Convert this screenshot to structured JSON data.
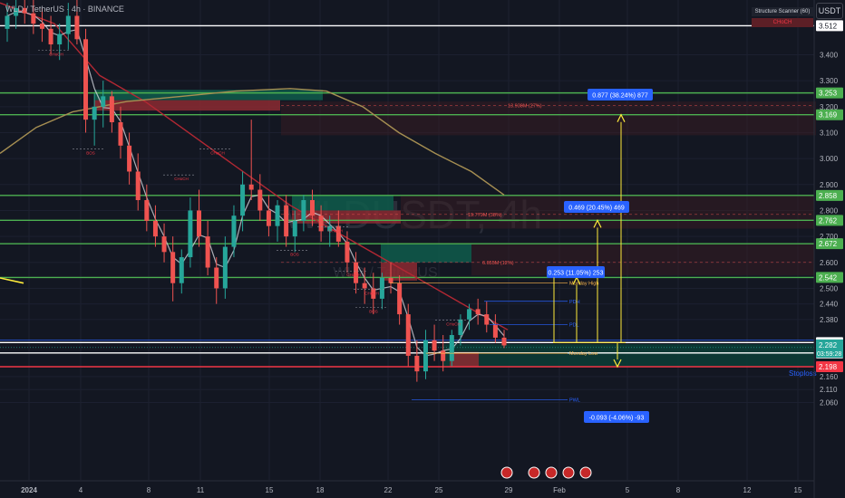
{
  "header": {
    "symbol_title": "WLD / TetherUS · 4h · BINANCE",
    "currency_button": "USDT",
    "scanner_title": "Structure Scanner (60)",
    "scanner_value": "CHoCH"
  },
  "colors": {
    "background": "#131722",
    "up": "#26a69a",
    "down": "#ef5350",
    "level_green": "#4caf50",
    "stoploss_red": "#f23645",
    "measure_yellow": "#ffeb3b",
    "measure_blue": "#2962ff",
    "ma_red": "#b22833",
    "ma_tan": "#a68f52"
  },
  "chart_data": {
    "type": "candlestick",
    "watermark": "WLDUSDT, 4h",
    "watermark_sub": "WLD / TetherUS",
    "y_ticks": [
      3.4,
      3.3,
      3.2,
      3.1,
      3.0,
      2.9,
      2.8,
      2.7,
      2.6,
      2.5,
      2.44,
      2.38,
      2.16,
      2.11,
      2.06
    ],
    "x_ticks": [
      "2024",
      "4",
      "8",
      "11",
      "15",
      "18",
      "22",
      "25",
      "29",
      "Feb",
      "5",
      "8",
      "12",
      "15"
    ],
    "levels": [
      {
        "value": 3.512,
        "label": "3.512",
        "color": "#ffffff"
      },
      {
        "value": 3.253,
        "label": "3.253",
        "color": "#4caf50"
      },
      {
        "value": 3.169,
        "label": "3.169",
        "color": "#4caf50"
      },
      {
        "value": 2.858,
        "label": "2.858",
        "color": "#4caf50"
      },
      {
        "value": 2.762,
        "label": "2.762",
        "color": "#4caf50"
      },
      {
        "value": 2.672,
        "label": "2.672",
        "color": "#4caf50"
      },
      {
        "value": 2.542,
        "label": "2.542",
        "color": "#4caf50"
      },
      {
        "value": 2.291,
        "label": "2.291",
        "color": "#ffffff"
      },
      {
        "value": 2.251,
        "label": "2.251",
        "color": "#ffffff"
      },
      {
        "value": 2.198,
        "label": "2.198",
        "color": "#f23645"
      }
    ],
    "current_price": {
      "value": 2.282,
      "label": "2.282",
      "countdown": "03:59:28"
    },
    "stoploss_label": "Stoploss",
    "measurements": [
      {
        "label": "0.877 (38.24%) 877",
        "target": 3.169
      },
      {
        "label": "0.469 (20.45%) 469",
        "target": 2.762
      },
      {
        "label": "0.253 (11.05%) 253",
        "target": 2.542
      },
      {
        "label": "-0.093 (-4.06%) -93",
        "target": 2.198
      }
    ],
    "zone_labels": [
      {
        "text": "13.938M (27%)"
      },
      {
        "text": "19.779M (38%)"
      },
      {
        "text": "6.655M (12%)"
      }
    ],
    "pivot_labels": [
      {
        "text": "Monday High",
        "value": 2.52
      },
      {
        "text": "Monday Low",
        "value": 2.25
      },
      {
        "text": "PDH",
        "value": 2.45
      },
      {
        "text": "PDL",
        "value": 2.36
      },
      {
        "text": "PWL",
        "value": 2.07
      }
    ],
    "structure_labels": [
      "CHoCH",
      "BOS",
      "CHoCH",
      "CHoCH",
      "BOS",
      "CHoCH",
      "CHoCH",
      "BOS",
      "CHoCH",
      "CHoCH"
    ],
    "candles": [
      [
        3.5,
        3.6,
        3.45,
        3.55
      ],
      [
        3.55,
        3.62,
        3.5,
        3.58
      ],
      [
        3.58,
        3.65,
        3.52,
        3.56
      ],
      [
        3.56,
        3.63,
        3.48,
        3.52
      ],
      [
        3.52,
        3.58,
        3.45,
        3.5
      ],
      [
        3.5,
        3.55,
        3.4,
        3.44
      ],
      [
        3.44,
        3.52,
        3.38,
        3.48
      ],
      [
        3.48,
        3.6,
        3.42,
        3.55
      ],
      [
        3.55,
        3.62,
        3.44,
        3.46
      ],
      [
        3.46,
        3.5,
        3.1,
        3.15
      ],
      [
        3.15,
        3.25,
        3.05,
        3.2
      ],
      [
        3.2,
        3.3,
        3.12,
        3.24
      ],
      [
        3.24,
        3.26,
        3.1,
        3.14
      ],
      [
        3.14,
        3.2,
        3.0,
        3.05
      ],
      [
        3.05,
        3.1,
        2.9,
        2.95
      ],
      [
        2.95,
        3.02,
        2.8,
        2.84
      ],
      [
        2.84,
        2.9,
        2.72,
        2.76
      ],
      [
        2.76,
        2.82,
        2.66,
        2.7
      ],
      [
        2.7,
        2.75,
        2.6,
        2.64
      ],
      [
        2.64,
        2.7,
        2.45,
        2.52
      ],
      [
        2.52,
        2.65,
        2.48,
        2.62
      ],
      [
        2.62,
        2.85,
        2.58,
        2.8
      ],
      [
        2.8,
        2.88,
        2.66,
        2.7
      ],
      [
        2.7,
        2.76,
        2.55,
        2.58
      ],
      [
        2.58,
        2.62,
        2.44,
        2.5
      ],
      [
        2.5,
        2.7,
        2.46,
        2.66
      ],
      [
        2.66,
        2.82,
        2.62,
        2.78
      ],
      [
        2.78,
        2.95,
        2.72,
        2.9
      ],
      [
        2.9,
        3.15,
        2.84,
        2.88
      ],
      [
        2.88,
        2.94,
        2.76,
        2.8
      ],
      [
        2.8,
        2.86,
        2.7,
        2.74
      ],
      [
        2.74,
        2.84,
        2.68,
        2.82
      ],
      [
        2.82,
        2.86,
        2.66,
        2.7
      ],
      [
        2.7,
        2.8,
        2.64,
        2.76
      ],
      [
        2.76,
        2.86,
        2.72,
        2.84
      ],
      [
        2.84,
        2.88,
        2.74,
        2.78
      ],
      [
        2.78,
        2.82,
        2.68,
        2.72
      ],
      [
        2.72,
        2.78,
        2.66,
        2.74
      ],
      [
        2.74,
        2.8,
        2.66,
        2.68
      ],
      [
        2.68,
        2.72,
        2.56,
        2.6
      ],
      [
        2.6,
        2.64,
        2.48,
        2.52
      ],
      [
        2.52,
        2.58,
        2.44,
        2.5
      ],
      [
        2.5,
        2.56,
        2.4,
        2.46
      ],
      [
        2.46,
        2.56,
        2.42,
        2.54
      ],
      [
        2.54,
        2.6,
        2.48,
        2.52
      ],
      [
        2.52,
        2.55,
        2.36,
        2.4
      ],
      [
        2.4,
        2.44,
        2.2,
        2.24
      ],
      [
        2.24,
        2.3,
        2.14,
        2.18
      ],
      [
        2.18,
        2.34,
        2.15,
        2.3
      ],
      [
        2.3,
        2.36,
        2.22,
        2.26
      ],
      [
        2.26,
        2.32,
        2.18,
        2.22
      ],
      [
        2.22,
        2.34,
        2.2,
        2.32
      ],
      [
        2.32,
        2.4,
        2.28,
        2.38
      ],
      [
        2.38,
        2.44,
        2.34,
        2.42
      ],
      [
        2.42,
        2.46,
        2.36,
        2.4
      ],
      [
        2.4,
        2.45,
        2.33,
        2.36
      ],
      [
        2.36,
        2.4,
        2.29,
        2.31
      ],
      [
        2.31,
        2.34,
        2.27,
        2.28
      ]
    ]
  }
}
